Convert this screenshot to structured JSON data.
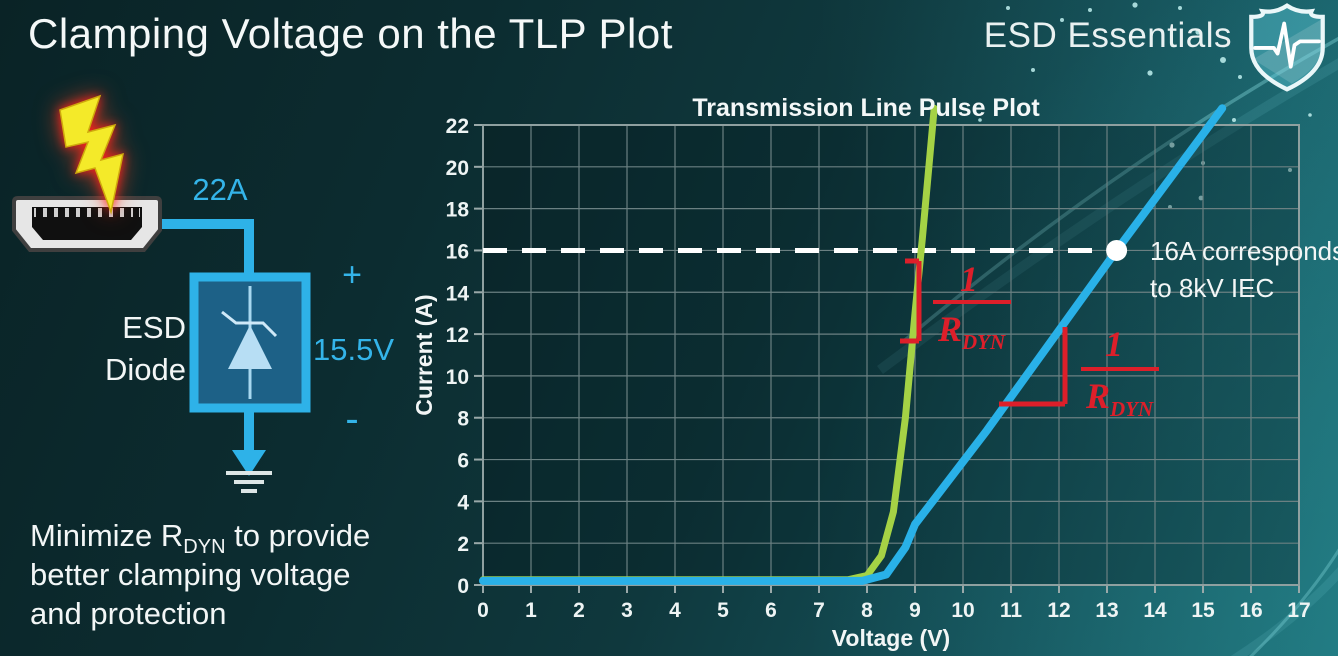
{
  "header": {
    "title": "Clamping Voltage on the TLP Plot",
    "brand": "ESD Essentials",
    "brand_icon": "shield-pulse-icon"
  },
  "diagram": {
    "surge_current_label": "22A",
    "device_label_line1": "ESD",
    "device_label_line2": "Diode",
    "plus_label": "+",
    "clamp_voltage_label": "15.5V",
    "minus_label": "-",
    "icons": [
      "lightning-bolt-icon",
      "hdmi-connector-icon",
      "zener-diode-icon",
      "ground-icon"
    ],
    "colors": {
      "wire": "#2eb2e8",
      "diode_box_fill": "#1d6187",
      "diode_symbol": "#b7def4",
      "bolt": "#f4ea29"
    }
  },
  "note": {
    "line1_pre": "Minimize R",
    "line1_sub": "DYN",
    "line1_post": " to provide",
    "line2": "better clamping voltage",
    "line3": "and protection"
  },
  "chart_data": {
    "type": "line",
    "title": "Transmission Line Pulse Plot",
    "xlabel": "Voltage (V)",
    "ylabel": "Current (A)",
    "xlim": [
      0,
      17
    ],
    "ylim": [
      0,
      22
    ],
    "grid": true,
    "x_ticks": [
      0,
      1,
      2,
      3,
      4,
      5,
      6,
      7,
      8,
      9,
      10,
      11,
      12,
      13,
      14,
      15,
      16,
      17
    ],
    "y_ticks": [
      0,
      2,
      4,
      6,
      8,
      10,
      12,
      14,
      16,
      18,
      20,
      22
    ],
    "series": [
      {
        "name": "low RDYN diode (steep green TLP curve)",
        "color": "#a5d245",
        "width": 7,
        "data_name": "green-tlp-curve",
        "points": [
          [
            0,
            0.25
          ],
          [
            7.6,
            0.25
          ],
          [
            8.0,
            0.45
          ],
          [
            8.3,
            1.4
          ],
          [
            8.55,
            3.5
          ],
          [
            8.8,
            8
          ],
          [
            9.0,
            13
          ],
          [
            9.15,
            16.5
          ],
          [
            9.4,
            22.8
          ]
        ]
      },
      {
        "name": "higher RDYN diode (blue TLP curve)",
        "color": "#29b1e8",
        "width": 8,
        "data_name": "blue-tlp-curve",
        "points": [
          [
            0,
            0.2
          ],
          [
            7.9,
            0.2
          ],
          [
            8.4,
            0.5
          ],
          [
            8.8,
            1.8
          ],
          [
            9.0,
            2.9
          ],
          [
            10.5,
            7.4
          ],
          [
            13.2,
            16
          ],
          [
            15.4,
            22.8
          ]
        ]
      }
    ],
    "reference_line": {
      "y": 16,
      "style": "dashed",
      "color": "#ffffff"
    },
    "marker": {
      "x": 13.2,
      "y": 16,
      "color": "#ffffff",
      "label_line1": "16A corresponds",
      "label_line2": "to 8kV IEC"
    },
    "slope_annotations": [
      {
        "target": "green curve",
        "numerator": "1",
        "denominator_base": "R",
        "denominator_sub": "DYN",
        "color": "#dd1f2a"
      },
      {
        "target": "blue curve",
        "numerator": "1",
        "denominator_base": "R",
        "denominator_sub": "DYN",
        "color": "#dd1f2a"
      }
    ],
    "annotation_color": "#dd1f2a",
    "legend": "none"
  }
}
